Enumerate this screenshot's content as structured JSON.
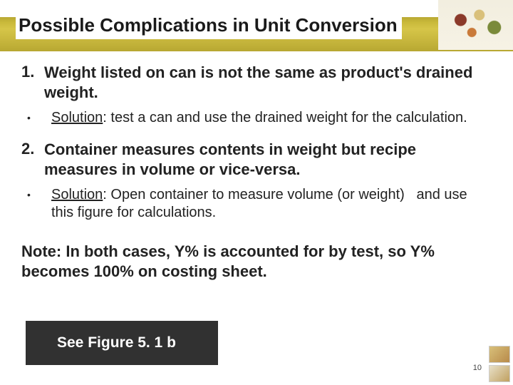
{
  "title": "Possible Complications in Unit Conversion",
  "items": [
    {
      "num": "1.",
      "problem": "Weight listed on can is not the same as product's drained weight.",
      "solution_label": "Solution",
      "solution_text": ": test a can and use the drained weight for the calculation."
    },
    {
      "num": "2.",
      "problem": "Container measures contents in weight but recipe measures in volume or vice-versa.",
      "solution_label": "Solution",
      "solution_text": ": Open container to measure volume (or weight)   and use this figure for calculations."
    }
  ],
  "note": "Note: In both cases, Y% is accounted for by test, so Y% becomes 100% on costing sheet.",
  "footer": "See Figure 5. 1 b",
  "page_number": "10"
}
